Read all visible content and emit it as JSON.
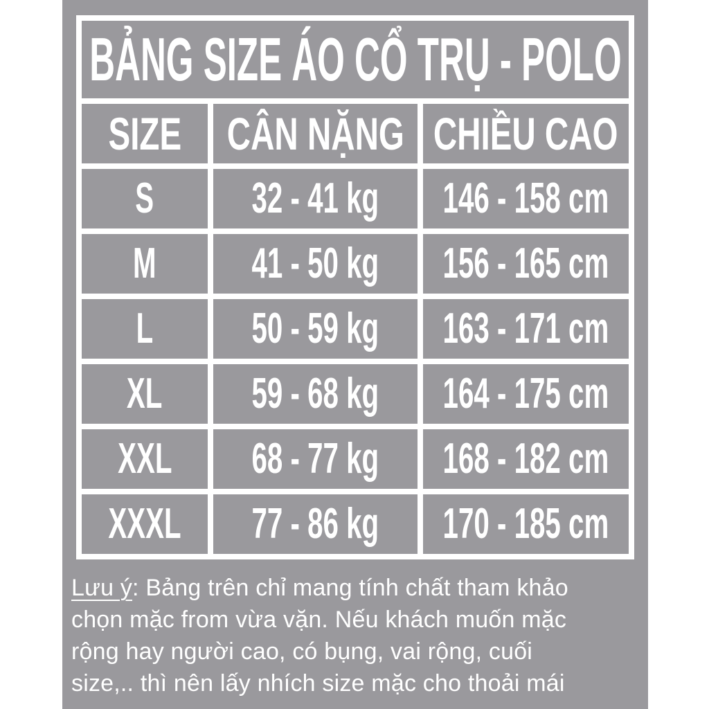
{
  "title": "BẢNG SIZE ÁO CỔ TRỤ - POLO",
  "table": {
    "columns": [
      "SIZE",
      "CÂN NẶNG",
      "CHIỀU CAO"
    ],
    "rows": [
      [
        "S",
        "32 - 41 kg",
        "146 - 158 cm"
      ],
      [
        "M",
        "41 - 50 kg",
        "156 - 165 cm"
      ],
      [
        "L",
        "50 - 59 kg",
        "163 - 171 cm"
      ],
      [
        "XL",
        "59 - 68 kg",
        "164 - 175 cm"
      ],
      [
        "XXL",
        "68 - 77 kg",
        "168 - 182 cm"
      ],
      [
        "XXXL",
        "77 - 86 kg",
        "170 - 185 cm"
      ]
    ]
  },
  "note": {
    "label": "Lưu ý",
    "line1_rest": ": Bảng trên chỉ mang tính chất tham khảo",
    "line2": "chọn mặc from vừa vặn. Nếu khách muốn mặc",
    "line3": "rộng hay người cao, có bụng, vai rộng, cuối",
    "line4": "size,.. thì nên lấy nhích size mặc cho thoải mái"
  },
  "colors": {
    "poster_background": "#9a999d",
    "grid_lines": "#ffffff",
    "text": "#ffffff"
  }
}
